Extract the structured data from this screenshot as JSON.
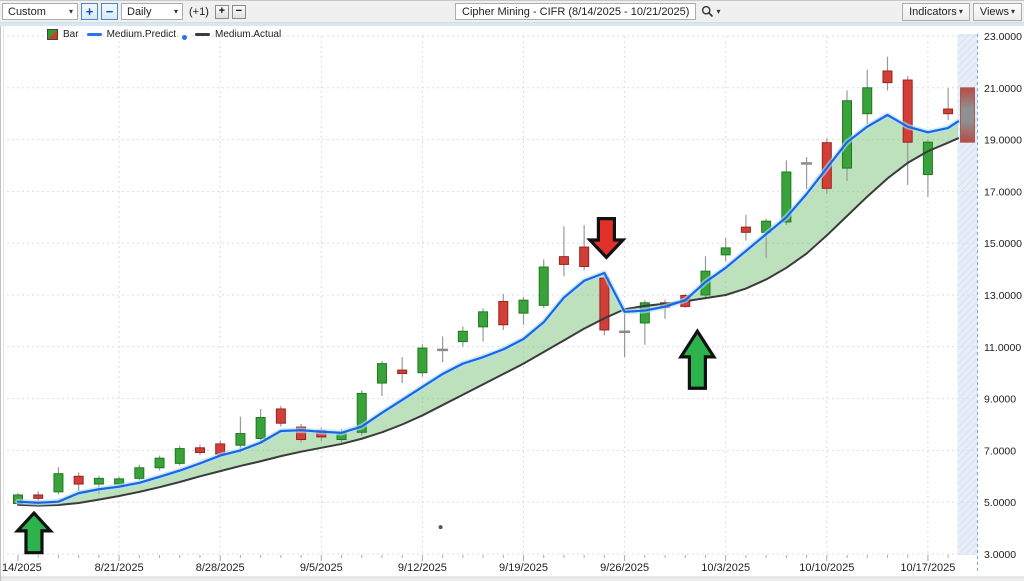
{
  "toolbar": {
    "range_select": "Custom",
    "zoom_in": "+",
    "zoom_out": "−",
    "period_select": "Daily",
    "offset_label": "(+1)",
    "bar_add": "+",
    "bar_remove": "−",
    "title": "Cipher Mining - CIFR (8/14/2025 - 10/21/2025)",
    "indicators_button": "Indicators",
    "views_button": "Views"
  },
  "icons": {
    "caret_down": "▾"
  },
  "legend": {
    "bar": "Bar",
    "predict": "Medium.Predict",
    "actual": "Medium.Actual"
  },
  "colors": {
    "up": "#3aa23a",
    "up_stroke": "#1e7a1e",
    "down": "#d04038",
    "down_stroke": "#9c221c",
    "wick": "#999999",
    "neutral": "#8a8a8a",
    "predict": "#1766e8",
    "predict_halo": "#b5ddf5",
    "actual": "#3b3b3b",
    "band": "#7cc47c",
    "grid": "#dddddd",
    "axis_text": "#222222",
    "arrow_up": "#2db34e",
    "arrow_down": "#e03028",
    "arrow_outline": "#111111",
    "zone_bg": "#e8eef8",
    "zone_hatch": "#d7e1f2",
    "zone_border": "#7ba7d7",
    "current_edge": "#b84a42",
    "current_mid": "#8f9090"
  },
  "chart_data": {
    "type": "candlestick",
    "title": "Cipher Mining - CIFR (8/14/2025 - 10/21/2025)",
    "y_axis": {
      "min": 3,
      "max": 23,
      "step": 2,
      "ticks": [
        "3.0000",
        "5.0000",
        "7.0000",
        "9.0000",
        "11.0000",
        "13.0000",
        "15.0000",
        "17.0000",
        "19.0000",
        "21.0000",
        "23.0000"
      ]
    },
    "x_axis": {
      "labels": [
        {
          "index": 0,
          "text": "14/2025",
          "grid": false
        },
        {
          "index": 5,
          "text": "8/21/2025",
          "grid": true
        },
        {
          "index": 10,
          "text": "8/28/2025",
          "grid": true
        },
        {
          "index": 15,
          "text": "9/5/2025",
          "grid": true
        },
        {
          "index": 20,
          "text": "9/12/2025",
          "grid": true
        },
        {
          "index": 25,
          "text": "9/19/2025",
          "grid": true
        },
        {
          "index": 30,
          "text": "9/26/2025",
          "grid": true
        },
        {
          "index": 35,
          "text": "10/3/2025",
          "grid": true
        },
        {
          "index": 40,
          "text": "10/10/2025",
          "grid": true
        },
        {
          "index": 45,
          "text": "10/17/2025",
          "grid": true
        }
      ]
    },
    "candles": [
      {
        "date": "8/14/2025",
        "o": 4.95,
        "h": 5.35,
        "l": 4.88,
        "c": 5.28,
        "dir": "up"
      },
      {
        "date": "8/15/2025",
        "o": 5.28,
        "h": 5.42,
        "l": 5.02,
        "c": 5.15,
        "dir": "down"
      },
      {
        "date": "8/18/2025",
        "o": 5.4,
        "h": 6.35,
        "l": 5.3,
        "c": 6.1,
        "dir": "up"
      },
      {
        "date": "8/19/2025",
        "o": 6.0,
        "h": 6.15,
        "l": 5.42,
        "c": 5.7,
        "dir": "down"
      },
      {
        "date": "8/20/2025",
        "o": 5.7,
        "h": 6.02,
        "l": 5.32,
        "c": 5.92,
        "dir": "up"
      },
      {
        "date": "8/21/2025",
        "o": 5.7,
        "h": 5.98,
        "l": 5.58,
        "c": 5.9,
        "dir": "up"
      },
      {
        "date": "8/22/2025",
        "o": 5.92,
        "h": 6.45,
        "l": 5.85,
        "c": 6.33,
        "dir": "up"
      },
      {
        "date": "8/25/2025",
        "o": 6.33,
        "h": 6.8,
        "l": 6.22,
        "c": 6.7,
        "dir": "up"
      },
      {
        "date": "8/26/2025",
        "o": 6.5,
        "h": 7.18,
        "l": 6.42,
        "c": 7.07,
        "dir": "up"
      },
      {
        "date": "8/27/2025",
        "o": 7.1,
        "h": 7.22,
        "l": 6.82,
        "c": 6.92,
        "dir": "down"
      },
      {
        "date": "8/28/2025",
        "o": 7.25,
        "h": 7.38,
        "l": 6.8,
        "c": 6.86,
        "dir": "down"
      },
      {
        "date": "8/29/2025",
        "o": 7.2,
        "h": 8.3,
        "l": 6.9,
        "c": 7.65,
        "dir": "up"
      },
      {
        "date": "9/2/2025",
        "o": 7.46,
        "h": 8.6,
        "l": 7.32,
        "c": 8.27,
        "dir": "up"
      },
      {
        "date": "9/3/2025",
        "o": 8.6,
        "h": 8.72,
        "l": 7.92,
        "c": 8.05,
        "dir": "down"
      },
      {
        "date": "9/4/2025",
        "o": 7.9,
        "h": 8.02,
        "l": 7.3,
        "c": 7.42,
        "dir": "down"
      },
      {
        "date": "9/5/2025",
        "o": 7.77,
        "h": 7.88,
        "l": 7.36,
        "c": 7.52,
        "dir": "down"
      },
      {
        "date": "9/8/2025",
        "o": 7.42,
        "h": 7.82,
        "l": 7.3,
        "c": 7.7,
        "dir": "up"
      },
      {
        "date": "9/9/2025",
        "o": 7.7,
        "h": 9.32,
        "l": 7.58,
        "c": 9.2,
        "dir": "up"
      },
      {
        "date": "9/10/2025",
        "o": 9.6,
        "h": 10.45,
        "l": 9.1,
        "c": 10.35,
        "dir": "up"
      },
      {
        "date": "9/11/2025",
        "o": 10.1,
        "h": 10.6,
        "l": 9.6,
        "c": 9.97,
        "dir": "down"
      },
      {
        "date": "9/12/2025",
        "o": 10.0,
        "h": 11.1,
        "l": 9.85,
        "c": 10.95,
        "dir": "up"
      },
      {
        "date": "9/15/2025",
        "o": 10.9,
        "h": 11.4,
        "l": 10.4,
        "c": 10.88,
        "dir": "neutral"
      },
      {
        "date": "9/16/2025",
        "o": 11.2,
        "h": 11.78,
        "l": 11.0,
        "c": 11.6,
        "dir": "up"
      },
      {
        "date": "9/17/2025",
        "o": 11.77,
        "h": 12.48,
        "l": 11.2,
        "c": 12.35,
        "dir": "up"
      },
      {
        "date": "9/18/2025",
        "o": 12.75,
        "h": 13.05,
        "l": 11.65,
        "c": 11.85,
        "dir": "down"
      },
      {
        "date": "9/19/2025",
        "o": 12.3,
        "h": 12.92,
        "l": 11.85,
        "c": 12.8,
        "dir": "up"
      },
      {
        "date": "9/22/2025",
        "o": 12.6,
        "h": 14.38,
        "l": 12.5,
        "c": 14.08,
        "dir": "up"
      },
      {
        "date": "9/23/2025",
        "o": 14.48,
        "h": 15.65,
        "l": 13.72,
        "c": 14.18,
        "dir": "down"
      },
      {
        "date": "9/24/2025",
        "o": 14.85,
        "h": 15.7,
        "l": 13.95,
        "c": 14.1,
        "dir": "down"
      },
      {
        "date": "9/25/2025",
        "o": 13.65,
        "h": 13.8,
        "l": 11.45,
        "c": 11.65,
        "dir": "down"
      },
      {
        "date": "9/26/2025",
        "o": 11.6,
        "h": 12.3,
        "l": 10.6,
        "c": 11.58,
        "dir": "neutral"
      },
      {
        "date": "9/29/2025",
        "o": 11.92,
        "h": 12.8,
        "l": 11.08,
        "c": 12.7,
        "dir": "up"
      },
      {
        "date": "9/30/2025",
        "o": 12.7,
        "h": 12.82,
        "l": 12.08,
        "c": 12.52,
        "dir": "down"
      },
      {
        "date": "10/1/2025",
        "o": 12.98,
        "h": 13.05,
        "l": 12.5,
        "c": 12.56,
        "dir": "down"
      },
      {
        "date": "10/2/2025",
        "o": 13.0,
        "h": 14.5,
        "l": 12.9,
        "c": 13.92,
        "dir": "up"
      },
      {
        "date": "10/3/2025",
        "o": 14.55,
        "h": 15.2,
        "l": 14.3,
        "c": 14.82,
        "dir": "up"
      },
      {
        "date": "10/6/2025",
        "o": 15.62,
        "h": 16.1,
        "l": 15.1,
        "c": 15.42,
        "dir": "down"
      },
      {
        "date": "10/7/2025",
        "o": 15.42,
        "h": 15.95,
        "l": 14.42,
        "c": 15.85,
        "dir": "up"
      },
      {
        "date": "10/8/2025",
        "o": 15.82,
        "h": 18.2,
        "l": 15.7,
        "c": 17.75,
        "dir": "up"
      },
      {
        "date": "10/9/2025",
        "o": 18.1,
        "h": 18.32,
        "l": 17.1,
        "c": 18.08,
        "dir": "neutral"
      },
      {
        "date": "10/10/2025",
        "o": 18.88,
        "h": 19.05,
        "l": 16.9,
        "c": 17.12,
        "dir": "down"
      },
      {
        "date": "10/13/2025",
        "o": 17.9,
        "h": 20.9,
        "l": 17.4,
        "c": 20.5,
        "dir": "up"
      },
      {
        "date": "10/14/2025",
        "o": 20.0,
        "h": 21.7,
        "l": 19.6,
        "c": 21.0,
        "dir": "up"
      },
      {
        "date": "10/15/2025",
        "o": 21.65,
        "h": 22.2,
        "l": 20.9,
        "c": 21.2,
        "dir": "down"
      },
      {
        "date": "10/16/2025",
        "o": 21.3,
        "h": 21.45,
        "l": 17.25,
        "c": 18.9,
        "dir": "down"
      },
      {
        "date": "10/17/2025",
        "o": 17.65,
        "h": 19.0,
        "l": 16.8,
        "c": 18.9,
        "dir": "up"
      },
      {
        "date": "10/20/2025",
        "o": 20.18,
        "h": 21.0,
        "l": 19.75,
        "c": 20.0,
        "dir": "down"
      },
      {
        "date": "10/21/2025",
        "o": 21.0,
        "h": 21.0,
        "l": 18.9,
        "c": 18.9,
        "dir": "current"
      }
    ],
    "series": [
      {
        "name": "Medium.Predict",
        "values": [
          5.02,
          4.98,
          5.02,
          5.35,
          5.5,
          5.6,
          5.75,
          5.98,
          6.22,
          6.5,
          6.8,
          7.0,
          7.3,
          7.75,
          7.78,
          7.72,
          7.68,
          7.92,
          8.45,
          8.95,
          9.45,
          9.95,
          10.35,
          10.6,
          10.9,
          11.3,
          11.95,
          12.9,
          13.55,
          13.85,
          12.35,
          12.4,
          12.55,
          12.8,
          13.5,
          14.05,
          14.7,
          15.35,
          16.0,
          16.9,
          17.9,
          18.9,
          19.5,
          19.95,
          19.5,
          19.28,
          19.45,
          19.7
        ]
      },
      {
        "name": "Medium.Actual",
        "values": [
          4.9,
          4.87,
          4.89,
          4.97,
          5.1,
          5.24,
          5.4,
          5.58,
          5.78,
          6.0,
          6.2,
          6.4,
          6.58,
          6.78,
          6.95,
          7.1,
          7.25,
          7.45,
          7.7,
          8.0,
          8.35,
          8.75,
          9.15,
          9.55,
          9.95,
          10.35,
          10.8,
          11.25,
          11.7,
          12.1,
          12.45,
          12.58,
          12.66,
          12.76,
          12.88,
          13.0,
          13.25,
          13.6,
          14.05,
          14.6,
          15.3,
          16.05,
          16.8,
          17.5,
          18.1,
          18.55,
          18.88,
          19.05
        ]
      }
    ],
    "annotations": [
      {
        "type": "arrow",
        "direction": "up",
        "index": 0.79,
        "tip_price": 4.58,
        "base_price": 3.05,
        "color": "up"
      },
      {
        "type": "arrow",
        "direction": "down",
        "index": 29.1,
        "tip_price": 14.45,
        "base_price": 15.95,
        "color": "down"
      },
      {
        "type": "arrow",
        "direction": "up",
        "index": 33.6,
        "tip_price": 11.6,
        "base_price": 9.4,
        "color": "up"
      },
      {
        "type": "dot",
        "index": 20.9,
        "price": 4.04
      }
    ],
    "projection_zone": {
      "bar_high": 21.0,
      "bar_low": 18.9
    }
  }
}
